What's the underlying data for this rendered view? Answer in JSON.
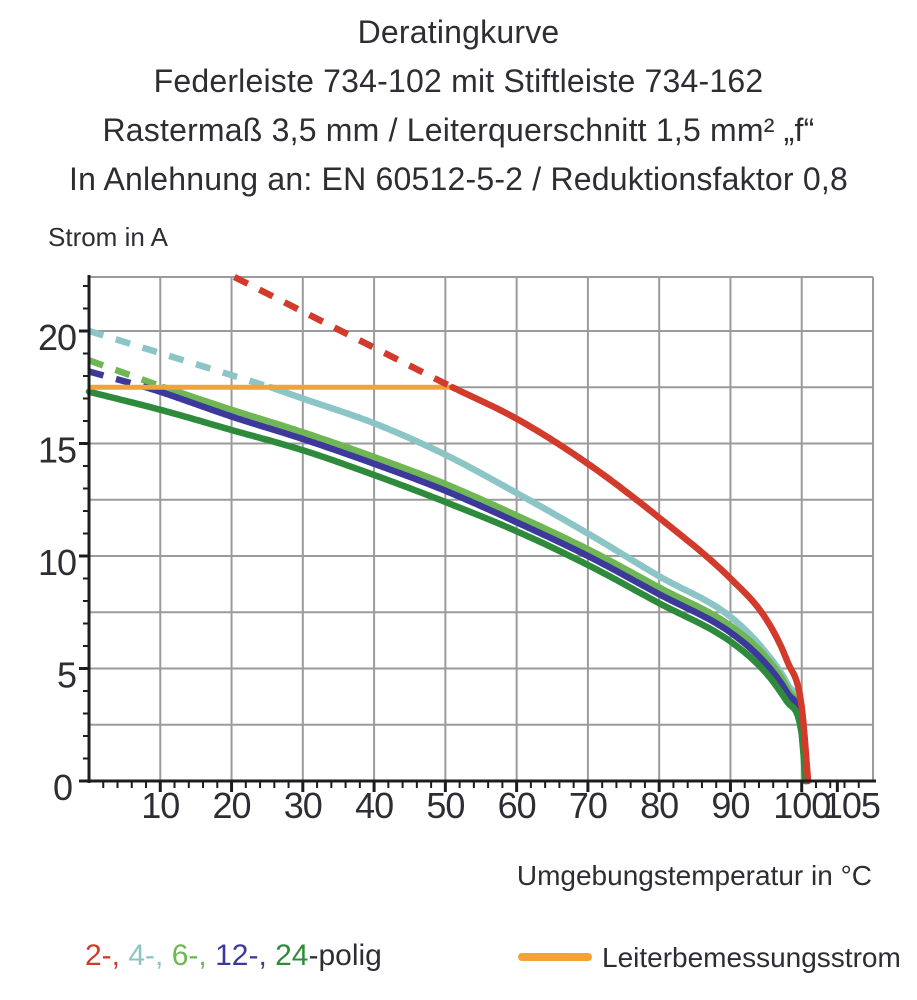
{
  "title": {
    "line1": "Deratingkurve",
    "line2": "Federleiste 734-102 mit Stiftleiste 734-162",
    "line3": "Rastermaß 3,5 mm / Leiterquerschnitt 1,5 mm² „f“",
    "line4": "In Anlehnung an: EN 60512-5-2 / Reduktionsfaktor 0,8"
  },
  "chart_data": {
    "type": "line",
    "xlabel": "Umgebungstemperatur in °C",
    "ylabel": "Strom in A",
    "xlim": [
      0,
      110
    ],
    "ylim": [
      0,
      22.4
    ],
    "x_ticks": [
      10,
      20,
      30,
      40,
      50,
      60,
      70,
      80,
      90,
      100,
      105
    ],
    "y_ticks": [
      0,
      5,
      10,
      15,
      20
    ],
    "x_grid_step": 10,
    "y_grid_step": 2.5,
    "x_minor_step": 2,
    "y_minor_step": 1,
    "grid_on": true,
    "grid_color": "#9b9b9b",
    "axis_color": "#1d1d21",
    "series": [
      {
        "name": "4-polig",
        "color": "#8cc5c6",
        "dashed": [
          [
            0,
            20.0
          ],
          [
            25.5,
            17.5
          ]
        ],
        "solid": [
          [
            25.5,
            17.5
          ],
          [
            30,
            17.0
          ],
          [
            40,
            15.9
          ],
          [
            50,
            14.5
          ],
          [
            60,
            12.8
          ],
          [
            70,
            11.0
          ],
          [
            80,
            9.1
          ],
          [
            90,
            7.3
          ],
          [
            95,
            5.7
          ],
          [
            98,
            4.3
          ],
          [
            100,
            2.7
          ],
          [
            100.7,
            0
          ]
        ]
      },
      {
        "name": "6-polig",
        "color": "#6fb754",
        "dashed": [
          [
            0,
            18.7
          ],
          [
            10.5,
            17.5
          ]
        ],
        "solid": [
          [
            10.5,
            17.5
          ],
          [
            20,
            16.5
          ],
          [
            30,
            15.5
          ],
          [
            40,
            14.4
          ],
          [
            50,
            13.2
          ],
          [
            60,
            11.8
          ],
          [
            70,
            10.3
          ],
          [
            80,
            8.6
          ],
          [
            90,
            6.9
          ],
          [
            95,
            5.5
          ],
          [
            98,
            4.1
          ],
          [
            100,
            2.5
          ],
          [
            100.7,
            0
          ]
        ]
      },
      {
        "name": "12-polig",
        "color": "#3c399b",
        "dashed": [
          [
            0,
            18.2
          ],
          [
            8,
            17.5
          ]
        ],
        "solid": [
          [
            8,
            17.5
          ],
          [
            10,
            17.3
          ],
          [
            20,
            16.2
          ],
          [
            30,
            15.2
          ],
          [
            40,
            14.1
          ],
          [
            50,
            12.9
          ],
          [
            60,
            11.5
          ],
          [
            70,
            10.0
          ],
          [
            80,
            8.3
          ],
          [
            90,
            6.6
          ],
          [
            95,
            5.2
          ],
          [
            98,
            3.9
          ],
          [
            100,
            2.4
          ],
          [
            100.6,
            0
          ]
        ]
      },
      {
        "name": "24-polig",
        "color": "#2e8b3c",
        "dashed": [],
        "solid": [
          [
            0,
            17.3
          ],
          [
            10,
            16.5
          ],
          [
            20,
            15.6
          ],
          [
            30,
            14.7
          ],
          [
            40,
            13.6
          ],
          [
            50,
            12.4
          ],
          [
            60,
            11.1
          ],
          [
            70,
            9.6
          ],
          [
            80,
            7.9
          ],
          [
            90,
            6.2
          ],
          [
            95,
            4.8
          ],
          [
            98,
            3.5
          ],
          [
            100,
            2.1
          ],
          [
            100.5,
            0
          ]
        ]
      },
      {
        "name": "2-polig",
        "color": "#d23a2c",
        "dashed": [
          [
            20.4,
            22.4
          ],
          [
            51,
            17.5
          ]
        ],
        "solid": [
          [
            51,
            17.5
          ],
          [
            60,
            16.1
          ],
          [
            70,
            14.1
          ],
          [
            80,
            11.7
          ],
          [
            90,
            9.0
          ],
          [
            95,
            7.2
          ],
          [
            98,
            5.3
          ],
          [
            100,
            3.3
          ],
          [
            100.9,
            0
          ]
        ]
      }
    ],
    "reference_line": {
      "label": "Leiterbemessungsstrom",
      "color": "#f2a236",
      "value": 17.5,
      "x_start": 0,
      "x_end": 51
    }
  },
  "legend": {
    "poles_parts": [
      {
        "text": "2-, ",
        "color": "#d23a2c"
      },
      {
        "text": "4-, ",
        "color": "#8cc5c6"
      },
      {
        "text": "6-, ",
        "color": "#6fb754"
      },
      {
        "text": "12-, ",
        "color": "#3c399b"
      },
      {
        "text": "24",
        "color": "#2e8b3c"
      },
      {
        "text": "-polig",
        "color": "#2d2d33"
      }
    ],
    "reference_label": "Leiterbemessungsstrom"
  }
}
